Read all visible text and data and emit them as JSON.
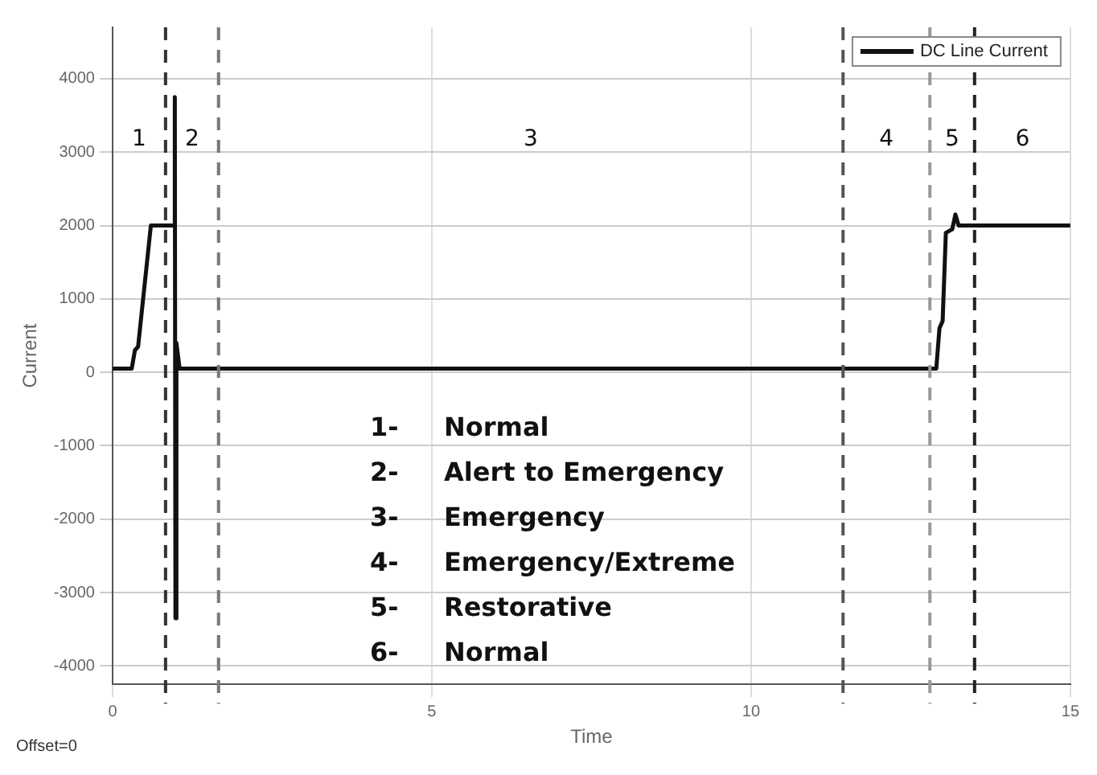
{
  "chart_data": {
    "type": "line",
    "xlabel": "Time",
    "ylabel": "Current",
    "x": [
      0,
      0.3,
      0.35,
      0.4,
      0.6,
      0.95,
      0.96,
      0.975,
      0.985,
      1.0,
      1.05,
      1.1,
      3,
      6,
      9,
      12,
      12.9,
      12.95,
      13.0,
      13.05,
      13.15,
      13.2,
      13.25,
      13.3,
      14,
      15
    ],
    "series": [
      {
        "name": "DC Line Current",
        "color": "#111111",
        "values": [
          50,
          50,
          300,
          350,
          2000,
          2000,
          2000,
          3750,
          -3350,
          400,
          50,
          50,
          50,
          50,
          50,
          50,
          50,
          600,
          700,
          1900,
          1950,
          2150,
          2000,
          2000,
          2000,
          2000
        ]
      }
    ],
    "xlim": [
      0,
      15
    ],
    "xticks": [
      0,
      5,
      10,
      15
    ],
    "ylim": [
      -4250,
      4700
    ],
    "yticks": [
      -4000,
      -3000,
      -2000,
      -1000,
      0,
      1000,
      2000,
      3000,
      4000
    ],
    "grid": true,
    "legend": "top right",
    "marker": "none",
    "line_style": "solid",
    "ref_lines": [
      {
        "axis": "x",
        "value": 0.83,
        "color": "#333333",
        "line_style": "dashed"
      },
      {
        "axis": "x",
        "value": 1.66,
        "color": "#777777",
        "line_style": "dashed"
      },
      {
        "axis": "x",
        "value": 11.44,
        "color": "#555555",
        "line_style": "dashed"
      },
      {
        "axis": "x",
        "value": 12.8,
        "color": "#999999",
        "line_style": "dashed"
      },
      {
        "axis": "x",
        "value": 13.5,
        "color": "#222222",
        "line_style": "dashed"
      }
    ],
    "annotations": [
      "1",
      "2",
      "3",
      "4",
      "5",
      "6",
      "1- Normal",
      "2- Alert to Emergency",
      "3- Emergency",
      "4- Emergency/Extreme",
      "5- Restorative",
      "6- Normal",
      "Offset=0"
    ]
  }
}
